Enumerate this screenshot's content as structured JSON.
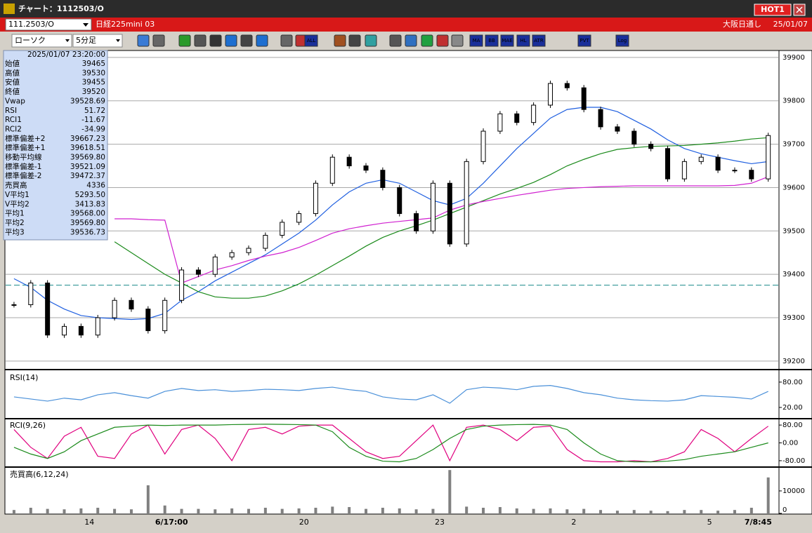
{
  "window": {
    "title": "チャート：1112503/O",
    "hot_button": "HOT1"
  },
  "symbol_bar": {
    "code": "111.2503/O",
    "name": "日経225mini 03",
    "session": "大阪日通し",
    "date": "25/01/07"
  },
  "toolbar": {
    "chart_style": "ローソク",
    "interval": "5分足",
    "icons": [
      "ALL",
      "MA",
      "BB",
      "MAE",
      "HL",
      "ATR",
      "PVT",
      "Log"
    ]
  },
  "info_panel": {
    "timestamp": "2025/01/07 23:20:00",
    "rows": [
      {
        "label": "始値",
        "value": "39465",
        "color": "#000000"
      },
      {
        "label": "高値",
        "value": "39530",
        "color": "#000000"
      },
      {
        "label": "安値",
        "value": "39455",
        "color": "#000000"
      },
      {
        "label": "終値",
        "value": "39520",
        "color": "#000000"
      },
      {
        "label": "Vwap",
        "value": "39528.69",
        "color": "#e000e0"
      },
      {
        "label": "RSI",
        "value": "51.72",
        "color": "#5b9bd5"
      },
      {
        "label": "RCI1",
        "value": "-11.67",
        "color": "#e0007f"
      },
      {
        "label": "RCI2",
        "value": "-34.99",
        "color": "#008000"
      },
      {
        "label": "標準偏差+2",
        "value": "39667.23",
        "color": "#909090"
      },
      {
        "label": "標準偏差+1",
        "value": "39618.51",
        "color": "#909090"
      },
      {
        "label": "移動平均線",
        "value": "39569.80",
        "color": "#0000c0"
      },
      {
        "label": "標準偏差-1",
        "value": "39521.09",
        "color": "#909090"
      },
      {
        "label": "標準偏差-2",
        "value": "39472.37",
        "color": "#909090"
      },
      {
        "label": "売買高",
        "value": "4336",
        "color": "#000000"
      },
      {
        "label": "V平均1",
        "value": "5293.50",
        "color": "#e00000"
      },
      {
        "label": "V平均2",
        "value": "3413.83",
        "color": "#0000e0"
      },
      {
        "label": "平均1",
        "value": "39568.00",
        "color": "#e00000"
      },
      {
        "label": "平均2",
        "value": "39569.80",
        "color": "#0000e0"
      },
      {
        "label": "平均3",
        "value": "39536.73",
        "color": "#008000"
      }
    ]
  },
  "price_chart": {
    "type": "candlestick",
    "ylim": [
      39182,
      39916
    ],
    "yticks": [
      39900,
      39800,
      39700,
      39600,
      39500,
      39400,
      39300,
      39200
    ],
    "grid": true,
    "xlim": [
      -0.5,
      45.6
    ],
    "xticks": [
      {
        "value": 4.5,
        "label": "14"
      },
      {
        "value": 9.4,
        "label": "6/17:00"
      },
      {
        "value": 17.3,
        "label": "20"
      },
      {
        "value": 25.4,
        "label": "23"
      },
      {
        "value": 33.4,
        "label": "2"
      },
      {
        "value": 41.5,
        "label": "5"
      },
      {
        "value": 44.4,
        "label": "7/8:45"
      }
    ],
    "close": [
      39330,
      39380,
      39260,
      39280,
      39260,
      39300,
      39340,
      39320,
      39270,
      39340,
      39410,
      39400,
      39440,
      39450,
      39460,
      39490,
      39520,
      39540,
      39610,
      39670,
      39650,
      39640,
      39600,
      39540,
      39500,
      39610,
      39470,
      39660,
      39730,
      39770,
      39750,
      39790,
      39840,
      39830,
      39780,
      39740,
      39730,
      39700,
      39690,
      39620,
      39660,
      39670,
      39640,
      39640,
      39620,
      39720
    ],
    "reference_line": 39375,
    "lines": [
      {
        "color": "#1f5fe0",
        "values": [
          39390,
          39370,
          39340,
          39320,
          39305,
          39300,
          39298,
          39296,
          39298,
          39310,
          39340,
          39360,
          39385,
          39405,
          39425,
          39445,
          39470,
          39495,
          39525,
          39560,
          39590,
          39610,
          39618,
          39610,
          39590,
          39570,
          39560,
          39575,
          39610,
          39650,
          39690,
          39725,
          39760,
          39780,
          39785,
          39785,
          39775,
          39755,
          39735,
          39710,
          39690,
          39678,
          39670,
          39662,
          39655,
          39660
        ]
      },
      {
        "color": "#1a8a1a",
        "values": [
          null,
          null,
          null,
          null,
          null,
          null,
          39475,
          39450,
          39425,
          39400,
          39380,
          39360,
          39348,
          39345,
          39345,
          39350,
          39362,
          39378,
          39398,
          39420,
          39442,
          39465,
          39485,
          39500,
          39512,
          39525,
          39540,
          39555,
          39570,
          39585,
          39598,
          39612,
          39630,
          39650,
          39665,
          39678,
          39688,
          39692,
          39695,
          39696,
          39697,
          39700,
          39703,
          39707,
          39712,
          39715
        ]
      },
      {
        "color": "#d020d0",
        "values": [
          null,
          null,
          null,
          null,
          null,
          null,
          39528,
          39528,
          39526,
          39525,
          39380,
          39395,
          39410,
          39420,
          39432,
          39442,
          39450,
          39462,
          39478,
          39495,
          39505,
          39512,
          39518,
          39522,
          39526,
          39530,
          39548,
          39560,
          39568,
          39575,
          39582,
          39588,
          39594,
          39598,
          39600,
          39602,
          39603,
          39604,
          39604,
          39604,
          39604,
          39604,
          39604,
          39605,
          39610,
          39625
        ]
      }
    ]
  },
  "rsi_pane": {
    "label": "RSI(14)",
    "ylim": [
      -5,
      108
    ],
    "yticks": [
      {
        "value": 80,
        "label": "80.00"
      },
      {
        "value": 20,
        "label": "20.00"
      }
    ],
    "color": "#4a90d9",
    "values": [
      45,
      40,
      35,
      42,
      38,
      50,
      55,
      48,
      42,
      58,
      65,
      60,
      62,
      58,
      60,
      63,
      62,
      60,
      65,
      68,
      62,
      58,
      45,
      40,
      38,
      50,
      30,
      62,
      68,
      66,
      62,
      70,
      72,
      65,
      55,
      50,
      42,
      38,
      36,
      35,
      38,
      48,
      46,
      44,
      40,
      58
    ]
  },
  "rci_pane": {
    "label": "RCI(9,26)",
    "ylim": [
      -105.5,
      105.5
    ],
    "yticks": [
      {
        "value": 80,
        "label": "80.00"
      },
      {
        "value": 0,
        "label": "0.00"
      },
      {
        "value": -80,
        "label": "-80.00"
      }
    ],
    "series": [
      {
        "color": "#e0007f",
        "values": [
          60,
          -20,
          -70,
          30,
          70,
          -60,
          -70,
          40,
          80,
          -50,
          60,
          80,
          20,
          -80,
          60,
          70,
          40,
          75,
          80,
          80,
          20,
          -40,
          -70,
          -60,
          10,
          80,
          -80,
          70,
          80,
          60,
          10,
          70,
          75,
          -30,
          -80,
          -85,
          -85,
          -80,
          -85,
          -70,
          -40,
          60,
          20,
          -40,
          20,
          75
        ]
      },
      {
        "color": "#1a8a1a",
        "values": [
          -20,
          -50,
          -70,
          -40,
          10,
          40,
          70,
          75,
          80,
          78,
          80,
          80,
          80,
          82,
          83,
          84,
          83,
          82,
          80,
          50,
          -20,
          -60,
          -82,
          -85,
          -70,
          -30,
          20,
          60,
          75,
          80,
          82,
          83,
          80,
          60,
          0,
          -50,
          -80,
          -85,
          -85,
          -82,
          -75,
          -60,
          -50,
          -40,
          -20,
          0
        ]
      }
    ]
  },
  "volume_pane": {
    "label": "売買高(6,12,24)",
    "ylim": [
      0,
      20300
    ],
    "yticks": [
      10000,
      0
    ],
    "color": "#808080",
    "values": [
      1500,
      2500,
      2000,
      1800,
      2200,
      2500,
      2000,
      1800,
      12500,
      3500,
      2000,
      2000,
      1800,
      2200,
      2000,
      2500,
      2000,
      2200,
      2500,
      3000,
      2800,
      2000,
      2500,
      2200,
      1800,
      2000,
      19300,
      3000,
      2500,
      2800,
      2200,
      2000,
      2200,
      1800,
      2000,
      1500,
      1200,
      1500,
      1200,
      1000,
      1500,
      1500,
      1200,
      1500,
      2500,
      16000
    ]
  }
}
